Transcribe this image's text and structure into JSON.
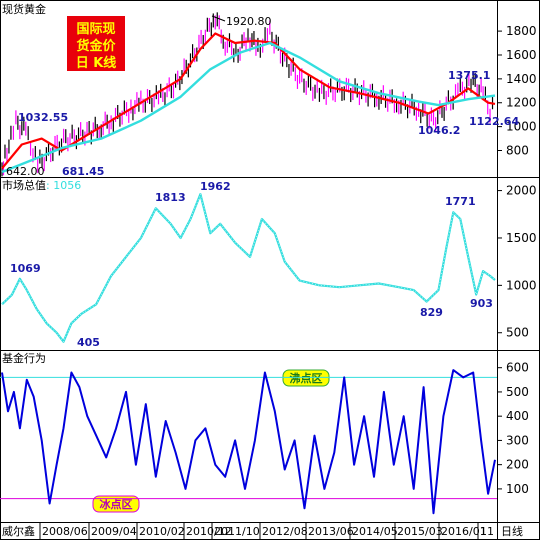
{
  "badge": {
    "lines": [
      "国际现",
      "货金价",
      "日 K线"
    ],
    "background": "#e8000b",
    "text_color": "#ffff00"
  },
  "panels": {
    "price": {
      "title": "现货黄金"
    },
    "market": {
      "title": "市场总值",
      "value_label": "1056"
    },
    "fund": {
      "title": "基金行为"
    }
  },
  "zones": {
    "boiling": "沸点区",
    "freezing": "冰点区"
  },
  "bottom_bar": {
    "left_label": "威尔鑫",
    "right_label": "日线"
  },
  "colors": {
    "price_up": "#ff00ff",
    "price_down": "#000000",
    "ma_short": "#ff0000",
    "ma_long": "#33dede",
    "market": "#33dede",
    "fund": "#0000dd",
    "boil_line": "#33dede",
    "freeze_line": "#dd00dd"
  },
  "chart_data": [
    {
      "type": "candlestick",
      "title": "现货黄金",
      "x_ticks": [
        "2008/06",
        "2009/04",
        "2010/02",
        "2010/12",
        "2011/10",
        "2012/08",
        "2013/06",
        "2014/05",
        "2015/03",
        "2016/01",
        "11"
      ],
      "yticks": [
        800,
        1000,
        1200,
        1400,
        1600,
        1800
      ],
      "ylim": [
        620,
        1960
      ],
      "series": [
        {
          "name": "price",
          "x": [
            0,
            3,
            9,
            14,
            24,
            36,
            60,
            90,
            100,
            110,
            130,
            140,
            160,
            175,
            190,
            205,
            215,
            225,
            238,
            248,
            258,
            270,
            285,
            300,
            320,
            345,
            380,
            400,
            420,
            435,
            450,
            462,
            475,
            485,
            492,
            497
          ],
          "values": [
            642,
            760,
            900,
            1032,
            960,
            681,
            880,
            960,
            1000,
            1050,
            1150,
            1200,
            1250,
            1350,
            1550,
            1780,
            1920,
            1700,
            1620,
            1760,
            1650,
            1780,
            1560,
            1400,
            1280,
            1320,
            1250,
            1200,
            1150,
            1046,
            1200,
            1300,
            1375,
            1280,
            1122,
            1200
          ]
        },
        {
          "name": "ma_short",
          "x": [
            0,
            20,
            40,
            60,
            90,
            120,
            150,
            180,
            200,
            215,
            235,
            255,
            275,
            300,
            330,
            360,
            400,
            430,
            450,
            470,
            490,
            497
          ],
          "values": [
            650,
            850,
            900,
            800,
            950,
            1100,
            1250,
            1400,
            1650,
            1780,
            1700,
            1720,
            1700,
            1480,
            1330,
            1280,
            1200,
            1110,
            1200,
            1320,
            1200,
            1190
          ]
        },
        {
          "name": "ma_long",
          "x": [
            0,
            30,
            60,
            100,
            140,
            180,
            210,
            240,
            270,
            300,
            340,
            380,
            420,
            440,
            470,
            497
          ],
          "values": [
            620,
            720,
            820,
            900,
            1050,
            1250,
            1480,
            1620,
            1700,
            1580,
            1380,
            1280,
            1210,
            1180,
            1230,
            1260
          ]
        }
      ],
      "annotations": [
        {
          "text": "1920.80",
          "value": 1920.8
        },
        {
          "text": "1032.55",
          "value": 1032.55
        },
        {
          "text": "681.45",
          "value": 681.45
        },
        {
          "text": "642.00",
          "value": 642.0
        },
        {
          "text": "1375.1",
          "value": 1375.1
        },
        {
          "text": "1046.2",
          "value": 1046.2
        },
        {
          "text": "1122.64",
          "value": 1122.64
        }
      ]
    },
    {
      "type": "line",
      "title": "市场总值",
      "yticks": [
        500,
        1000,
        1500,
        2000
      ],
      "ylim": [
        360,
        2080
      ],
      "series": [
        {
          "name": "market",
          "x": [
            0,
            10,
            18,
            25,
            35,
            45,
            55,
            62,
            70,
            80,
            95,
            110,
            125,
            140,
            155,
            170,
            180,
            190,
            200,
            210,
            220,
            235,
            250,
            262,
            275,
            285,
            300,
            320,
            340,
            360,
            380,
            400,
            415,
            428,
            440,
            448,
            455,
            462,
            470,
            478,
            485,
            492,
            497
          ],
          "values": [
            800,
            900,
            1069,
            950,
            750,
            600,
            500,
            405,
            600,
            700,
            800,
            1100,
            1300,
            1500,
            1813,
            1650,
            1500,
            1700,
            1962,
            1550,
            1650,
            1450,
            1300,
            1700,
            1550,
            1250,
            1050,
            1000,
            980,
            1000,
            1020,
            980,
            950,
            829,
            950,
            1400,
            1771,
            1700,
            1300,
            903,
            1150,
            1100,
            1056
          ]
        }
      ],
      "annotations": [
        {
          "text": "1069",
          "value": 1069
        },
        {
          "text": "405",
          "value": 405
        },
        {
          "text": "1813",
          "value": 1813
        },
        {
          "text": "1962",
          "value": 1962
        },
        {
          "text": "829",
          "value": 829
        },
        {
          "text": "1771",
          "value": 1771
        },
        {
          "text": "903",
          "value": 903
        }
      ]
    },
    {
      "type": "line",
      "title": "基金行为",
      "yticks": [
        100,
        200,
        300,
        400,
        500,
        600
      ],
      "ylim": [
        -20,
        640
      ],
      "hlines": [
        {
          "name": "boiling",
          "value": 560
        },
        {
          "name": "freezing",
          "value": 60
        }
      ],
      "series": [
        {
          "name": "fund",
          "x": [
            0,
            6,
            12,
            18,
            25,
            32,
            40,
            48,
            55,
            62,
            70,
            78,
            86,
            95,
            105,
            115,
            125,
            135,
            145,
            155,
            165,
            175,
            185,
            195,
            205,
            215,
            225,
            235,
            245,
            255,
            265,
            275,
            285,
            295,
            305,
            315,
            325,
            335,
            345,
            355,
            365,
            375,
            385,
            395,
            405,
            415,
            425,
            435,
            445,
            455,
            465,
            475,
            483,
            490,
            497
          ],
          "values": [
            580,
            420,
            500,
            350,
            550,
            480,
            300,
            40,
            200,
            350,
            580,
            520,
            400,
            320,
            230,
            350,
            500,
            200,
            450,
            150,
            380,
            250,
            100,
            300,
            350,
            200,
            150,
            300,
            100,
            300,
            580,
            420,
            180,
            300,
            20,
            320,
            100,
            250,
            560,
            200,
            400,
            150,
            500,
            200,
            400,
            100,
            520,
            0,
            400,
            590,
            560,
            580,
            300,
            80,
            220
          ]
        }
      ]
    }
  ]
}
